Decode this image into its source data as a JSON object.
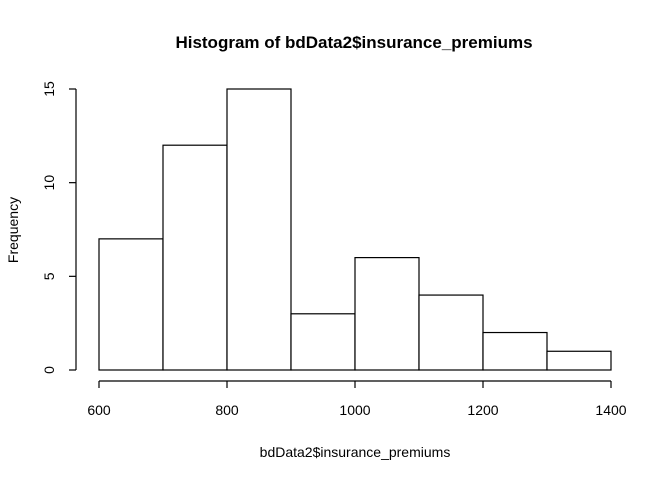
{
  "chart_data": {
    "type": "bar",
    "title": "Histogram of bdData2$insurance_premiums",
    "xlabel": "bdData2$insurance_premiums",
    "ylabel": "Frequency",
    "bins": [
      {
        "start": 600,
        "end": 700,
        "count": 7
      },
      {
        "start": 700,
        "end": 800,
        "count": 12
      },
      {
        "start": 800,
        "end": 900,
        "count": 15
      },
      {
        "start": 900,
        "end": 1000,
        "count": 3
      },
      {
        "start": 1000,
        "end": 1100,
        "count": 6
      },
      {
        "start": 1100,
        "end": 1200,
        "count": 4
      },
      {
        "start": 1200,
        "end": 1300,
        "count": 2
      },
      {
        "start": 1300,
        "end": 1400,
        "count": 1
      }
    ],
    "xlim": [
      600,
      1400
    ],
    "ylim": [
      0,
      15
    ],
    "x_ticks": [
      "600",
      "800",
      "1000",
      "1200",
      "1400"
    ],
    "y_ticks": [
      "0",
      "5",
      "10",
      "15"
    ],
    "grid": false,
    "bar_fill": "#ffffff",
    "bar_stroke": "#000000"
  }
}
